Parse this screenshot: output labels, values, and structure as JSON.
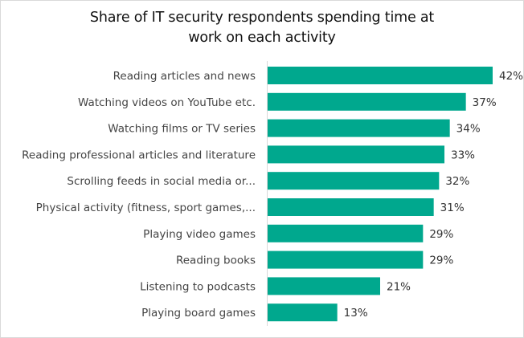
{
  "chart_data": {
    "type": "bar",
    "orientation": "horizontal",
    "title": "Share of IT security respondents spending time at work on each activity",
    "title_lines": [
      "Share of IT security respondents spending time at",
      "work on each activity"
    ],
    "xlabel": "",
    "ylabel": "",
    "categories": [
      "Reading articles and news",
      "Watching videos on YouTube etc.",
      "Watching films or TV series",
      "Reading professional articles and literature",
      "Scrolling feeds in social media or...",
      "Physical activity (fitness, sport games,...",
      "Playing video games",
      "Reading books",
      "Listening to podcasts",
      "Playing board games"
    ],
    "values": [
      42,
      37,
      34,
      33,
      32,
      31,
      29,
      29,
      21,
      13
    ],
    "value_labels": [
      "42%",
      "37%",
      "34%",
      "33%",
      "32%",
      "31%",
      "29%",
      "29%",
      "21%",
      "13%"
    ],
    "unit": "%",
    "xlim": [
      0,
      42
    ],
    "grid": false,
    "legend": "none",
    "colors": {
      "bar": "#00a88e",
      "axis": "#d9d9d9",
      "text": "#444444"
    }
  }
}
